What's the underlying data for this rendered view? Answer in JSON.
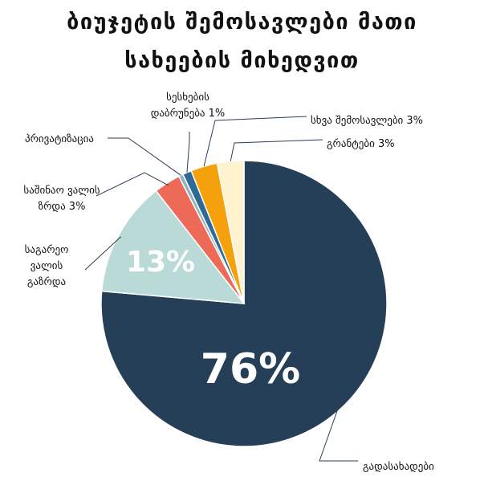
{
  "title_lines": [
    "ბიუჯეტის შემოსავლები მათი",
    "სახეების მიხედვით"
  ],
  "chart_data": {
    "type": "pie",
    "title": "ბიუჯეტის შემოსავლები მათი სახეების მიხედვით",
    "start_angle_deg": 0,
    "direction": "clockwise",
    "slices": [
      {
        "name": "გადასახადები",
        "value": 76,
        "color": "#263f58",
        "label_lines": [
          "გადასახადები"
        ],
        "big_label": "76%"
      },
      {
        "name": "საგარეო ვალის გაზრდა",
        "value": 13,
        "color": "#b9dad6",
        "label_lines": [
          "საგარეო",
          "ვალის",
          "გაზრდა"
        ],
        "big_label": "13%"
      },
      {
        "name": "საშინაო ვალის ზრდა",
        "value": 3,
        "color": "#ec6a57",
        "label_lines": [
          "საშინაო ვალის",
          "ზრდა 3%"
        ],
        "big_label": ""
      },
      {
        "name": "პრივატიზაცია",
        "value": 0.5,
        "color": "#8fb4c4",
        "label_lines": [
          "პრივატიზაცია"
        ],
        "big_label": ""
      },
      {
        "name": "სესხების დაბრუნება",
        "value": 1,
        "color": "#2e6a96",
        "label_lines": [
          "სესხების",
          "დაბრუნება 1%"
        ],
        "big_label": ""
      },
      {
        "name": "სხვა შემოსავლები",
        "value": 3,
        "color": "#f4a10c",
        "label_lines": [
          "სხვა შემოსავლები 3%"
        ],
        "big_label": ""
      },
      {
        "name": "გრანტები",
        "value": 3,
        "color": "#fff3cf",
        "label_lines": [
          "გრანტები 3%"
        ],
        "big_label": ""
      }
    ]
  }
}
